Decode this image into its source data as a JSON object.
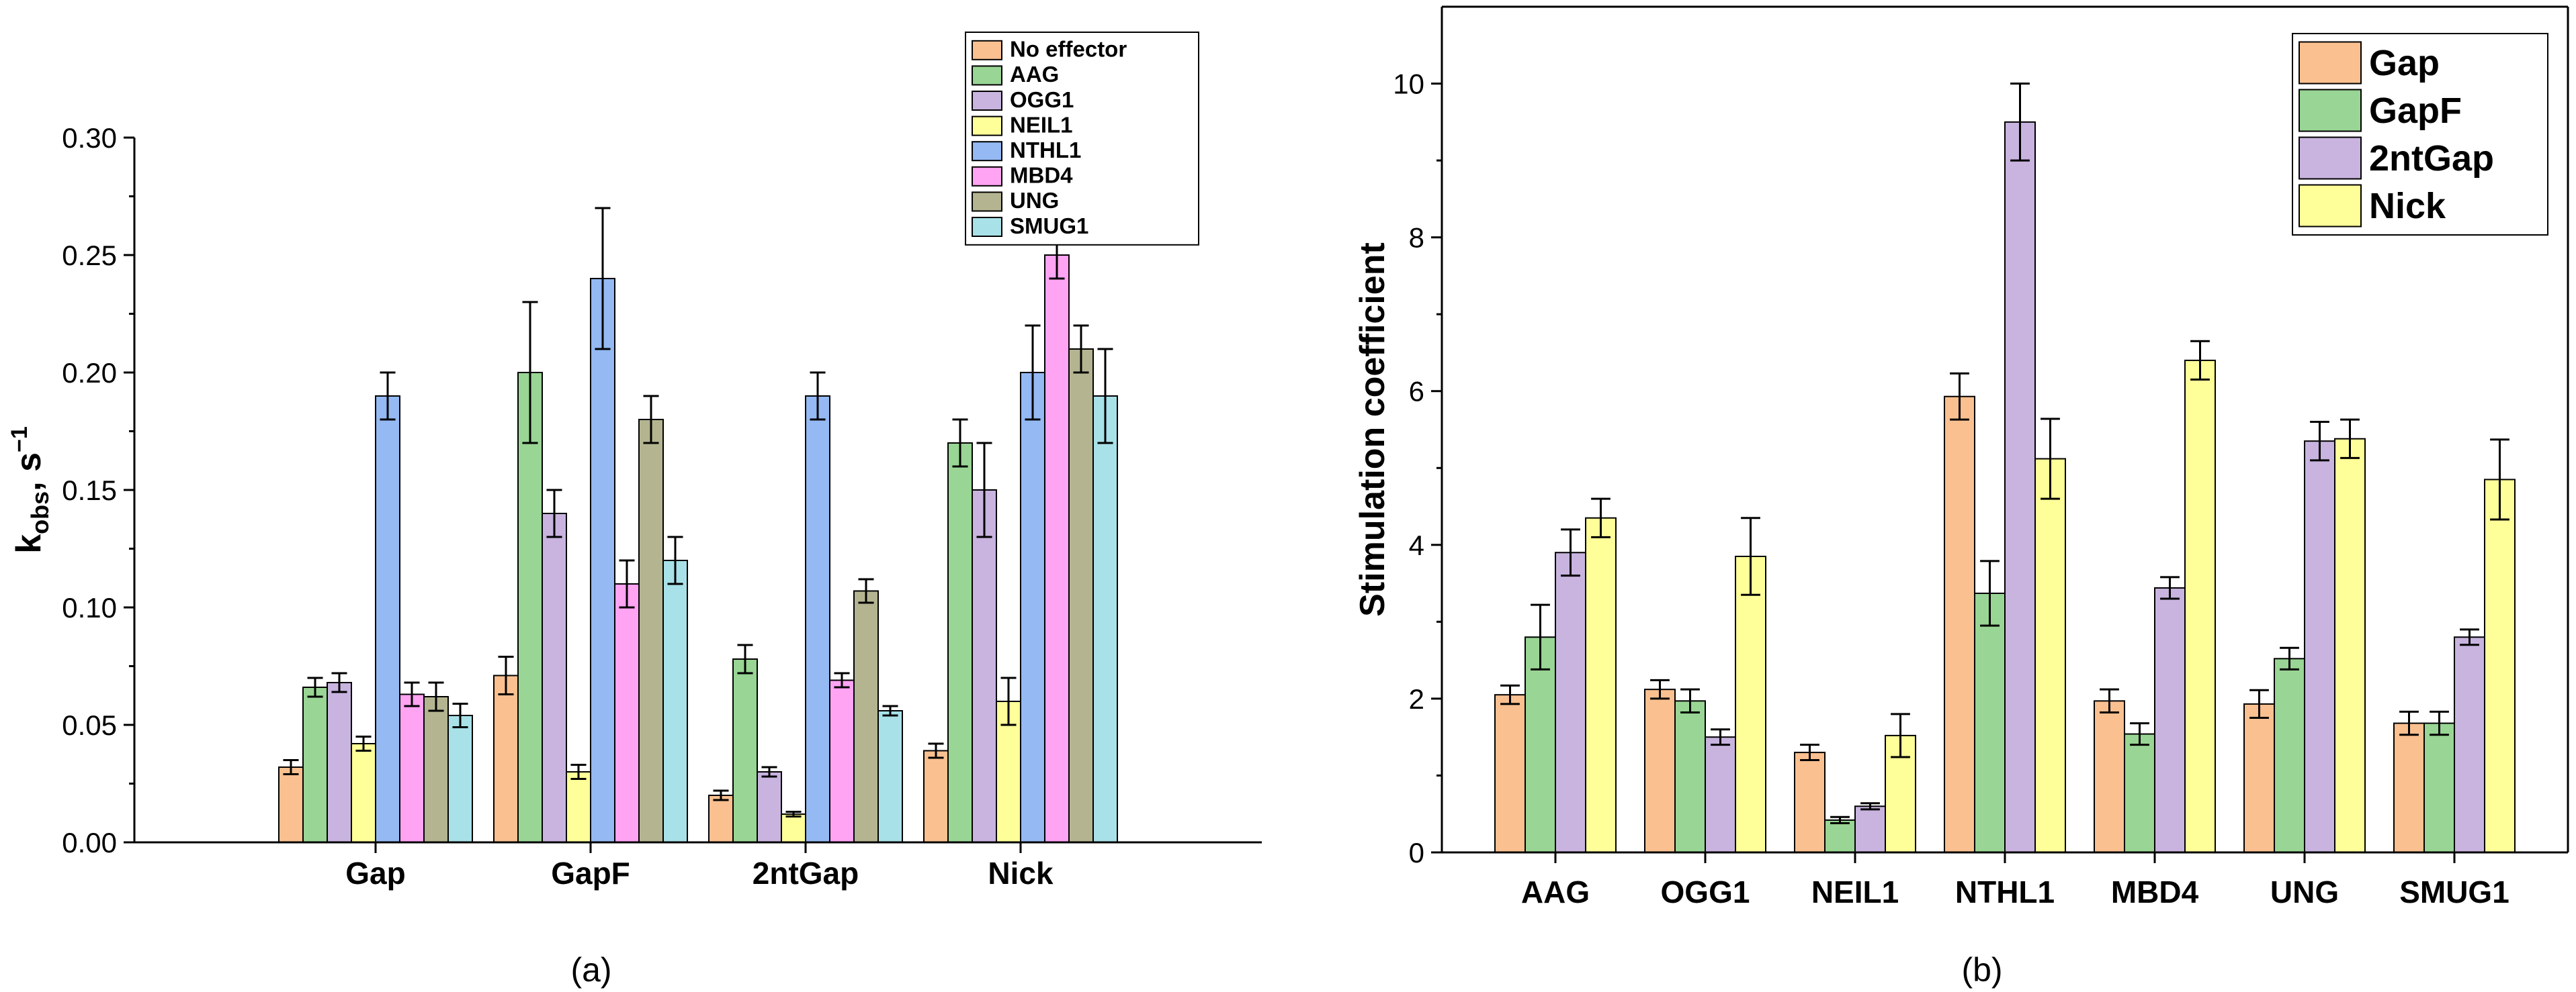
{
  "chart_data": [
    {
      "type": "bar",
      "panel_label": "(a)",
      "title": "",
      "xlabel": "",
      "ylabel": "k",
      "ylabel_sub": "obs",
      "ylabel_suffix": ", s",
      "ylabel_sup": "−1",
      "ylim": [
        0,
        0.3
      ],
      "yticks": [
        "0.00",
        "0.05",
        "0.10",
        "0.15",
        "0.20",
        "0.25",
        "0.30"
      ],
      "grid": false,
      "legend_position": "top-right",
      "categories": [
        "Gap",
        "GapF",
        "2ntGap",
        "Nick"
      ],
      "series": [
        {
          "name": "No effector",
          "color": "#FAC090",
          "values": [
            0.032,
            0.071,
            0.02,
            0.039
          ],
          "errors": [
            0.003,
            0.008,
            0.002,
            0.003
          ]
        },
        {
          "name": "AAG",
          "color": "#99D594",
          "values": [
            0.066,
            0.2,
            0.078,
            0.17
          ],
          "errors": [
            0.004,
            0.03,
            0.006,
            0.01
          ]
        },
        {
          "name": "OGG1",
          "color": "#C8B4DF",
          "values": [
            0.068,
            0.14,
            0.03,
            0.15
          ],
          "errors": [
            0.004,
            0.01,
            0.002,
            0.02
          ]
        },
        {
          "name": "NEIL1",
          "color": "#FFFF99",
          "values": [
            0.042,
            0.03,
            0.012,
            0.06
          ],
          "errors": [
            0.003,
            0.003,
            0.001,
            0.01
          ]
        },
        {
          "name": "NTHL1",
          "color": "#94B9F3",
          "values": [
            0.19,
            0.24,
            0.19,
            0.2
          ],
          "errors": [
            0.01,
            0.03,
            0.01,
            0.02
          ]
        },
        {
          "name": "MBD4",
          "color": "#FFA3F3",
          "values": [
            0.063,
            0.11,
            0.069,
            0.25
          ],
          "errors": [
            0.005,
            0.01,
            0.003,
            0.01
          ]
        },
        {
          "name": "UNG",
          "color": "#B4B491",
          "values": [
            0.062,
            0.18,
            0.107,
            0.21
          ],
          "errors": [
            0.006,
            0.01,
            0.005,
            0.01
          ]
        },
        {
          "name": "SMUG1",
          "color": "#A8E1E8",
          "values": [
            0.054,
            0.12,
            0.056,
            0.19
          ],
          "errors": [
            0.005,
            0.01,
            0.002,
            0.02
          ]
        }
      ]
    },
    {
      "type": "bar",
      "panel_label": "(b)",
      "title": "",
      "xlabel": "",
      "ylabel": "Stimulation coefficient",
      "ylim": [
        0,
        11
      ],
      "yticks": [
        "0",
        "2",
        "4",
        "6",
        "8",
        "10"
      ],
      "grid": false,
      "legend_position": "top-right",
      "categories": [
        "AAG",
        "OGG1",
        "NEIL1",
        "NTHL1",
        "MBD4",
        "UNG",
        "SMUG1"
      ],
      "series": [
        {
          "name": "Gap",
          "color": "#FAC090",
          "values": [
            2.05,
            2.12,
            1.3,
            5.93,
            1.97,
            1.93,
            1.68
          ],
          "errors": [
            0.12,
            0.12,
            0.1,
            0.3,
            0.15,
            0.18,
            0.15
          ]
        },
        {
          "name": "GapF",
          "color": "#99D594",
          "values": [
            2.8,
            1.97,
            0.42,
            3.37,
            1.54,
            2.52,
            1.68
          ],
          "errors": [
            0.42,
            0.15,
            0.04,
            0.42,
            0.14,
            0.14,
            0.15
          ]
        },
        {
          "name": "2ntGap",
          "color": "#C8B4DF",
          "values": [
            3.9,
            1.5,
            0.6,
            9.5,
            3.44,
            5.35,
            2.8
          ],
          "errors": [
            0.3,
            0.1,
            0.04,
            0.5,
            0.14,
            0.25,
            0.1
          ]
        },
        {
          "name": "Nick",
          "color": "#FFFF99",
          "values": [
            4.35,
            3.85,
            1.52,
            5.12,
            6.4,
            5.38,
            4.85
          ],
          "errors": [
            0.25,
            0.5,
            0.28,
            0.52,
            0.25,
            0.25,
            0.52
          ]
        }
      ]
    }
  ]
}
